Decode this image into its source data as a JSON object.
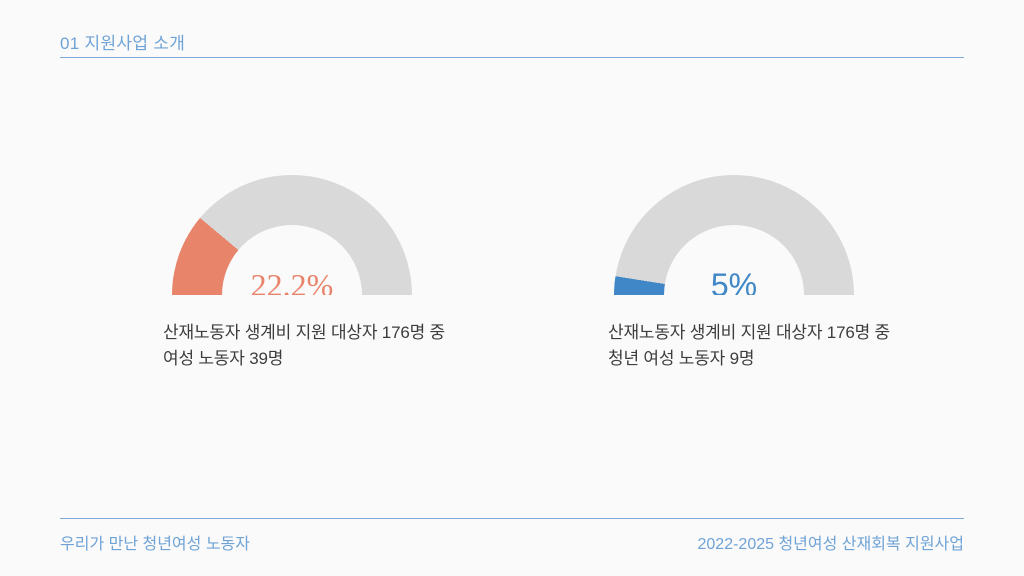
{
  "slide": {
    "background": "#fafafa",
    "accent_text_color": "#6fa3d6",
    "rule_color": "#7fabdb",
    "description_color": "#3d3d3d"
  },
  "header": {
    "title": "01 지원사업 소개"
  },
  "footer": {
    "left": "우리가 만난 청년여성 노동자",
    "right": "2022-2025 청년여성 산재회복 지원사업"
  },
  "chart_data": [
    {
      "type": "gauge",
      "shape": "semicircle-donut",
      "percent": 22.2,
      "label": "22.2%",
      "fill_color": "#e8846a",
      "track_color": "#d9d9d9",
      "range": [
        0,
        100
      ],
      "description_line1": "산재노동자 생계비 지원 대상자 176명 중",
      "description_line2": "여성 노동자 39명",
      "total_people": 176,
      "subset_people": 39
    },
    {
      "type": "gauge",
      "shape": "semicircle-donut",
      "percent": 5,
      "label": "5%",
      "fill_color": "#3f87c6",
      "track_color": "#d9d9d9",
      "range": [
        0,
        100
      ],
      "description_line1": "산재노동자 생계비 지원 대상자 176명 중",
      "description_line2": "청년 여성 노동자 9명",
      "total_people": 176,
      "subset_people": 9
    }
  ]
}
